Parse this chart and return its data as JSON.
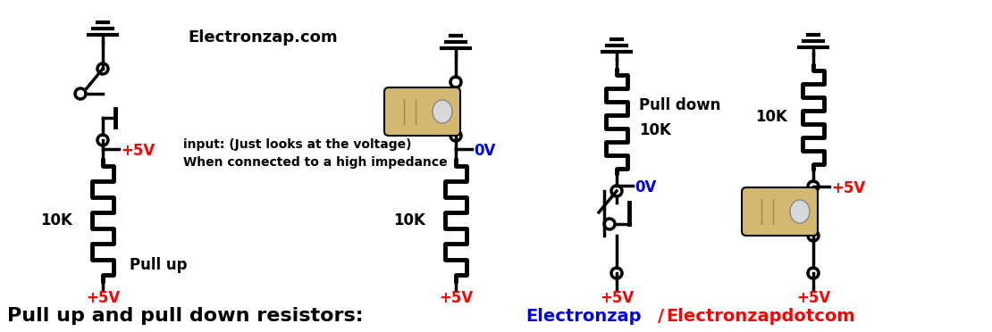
{
  "title": "Pull up and pull down resistors:",
  "credit_electronzap": "Electronzap",
  "credit_dotcom": "Electronzapdotcom",
  "website": "Electronzap.com",
  "bg_color": "#FFFFFF",
  "black": "#000000",
  "red": "#FF0000",
  "blue": "#0000EE",
  "figsize": [
    11.1,
    3.72
  ],
  "dpi": 100,
  "pull_up_label": "Pull up",
  "pull_down_label": "Pull down",
  "high_z_line1": "When connected to a high impedance",
  "high_z_line2": "input: (Just looks at the voltage)",
  "v5_label": "+5V",
  "v0_label": "0V",
  "r10k_label": "10K",
  "finger_color": "#D4B870",
  "nail_color": "#D8D8D8"
}
